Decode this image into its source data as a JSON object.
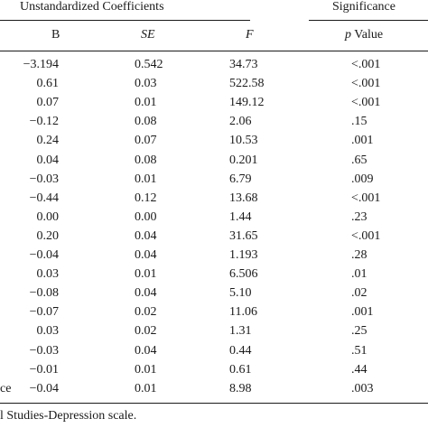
{
  "header": {
    "group_unstandardized": "Unstandardized Coefficients",
    "group_significance": "Significance",
    "col_b": "B",
    "col_se": "SE",
    "col_f": "F",
    "col_p_italic": "p",
    "col_p_rest": " Value"
  },
  "rows": [
    {
      "label": "",
      "b": "−3.194",
      "se": "0.542",
      "f": "34.73",
      "p": "<.001"
    },
    {
      "label": "",
      "b": "0.61",
      "se": "0.03",
      "f": "522.58",
      "p": "<.001"
    },
    {
      "label": "",
      "b": "0.07",
      "se": "0.01",
      "f": "149.12",
      "p": "<.001"
    },
    {
      "label": "",
      "b": "−0.12",
      "se": "0.08",
      "f": "2.06",
      "p": ".15"
    },
    {
      "label": "",
      "b": "0.24",
      "se": "0.07",
      "f": "10.53",
      "p": ".001"
    },
    {
      "label": "",
      "b": "0.04",
      "se": "0.08",
      "f": "0.201",
      "p": ".65"
    },
    {
      "label": "",
      "b": "−0.03",
      "se": "0.01",
      "f": "6.79",
      "p": ".009"
    },
    {
      "label": "",
      "b": "−0.44",
      "se": "0.12",
      "f": "13.68",
      "p": "<.001"
    },
    {
      "label": "",
      "b": "0.00",
      "se": "0.00",
      "f": "1.44",
      "p": ".23"
    },
    {
      "label": "",
      "b": "0.20",
      "se": "0.04",
      "f": "31.65",
      "p": "<.001"
    },
    {
      "label": "",
      "b": "−0.04",
      "se": "0.04",
      "f": "1.193",
      "p": ".28"
    },
    {
      "label": "",
      "b": "0.03",
      "se": "0.01",
      "f": "6.506",
      "p": ".01"
    },
    {
      "label": "",
      "b": "−0.08",
      "se": "0.04",
      "f": "5.10",
      "p": ".02"
    },
    {
      "label": "",
      "b": "−0.07",
      "se": "0.02",
      "f": "11.06",
      "p": ".001"
    },
    {
      "label": "",
      "b": "0.03",
      "se": "0.02",
      "f": "1.31",
      "p": ".25"
    },
    {
      "label": "",
      "b": "−0.03",
      "se": "0.04",
      "f": "0.44",
      "p": ".51"
    },
    {
      "label": "",
      "b": "−0.01",
      "se": "0.01",
      "f": "0.61",
      "p": ".44"
    },
    {
      "label": "ce",
      "b": "−0.04",
      "se": "0.01",
      "f": "8.98",
      "p": ".003"
    }
  ],
  "footnote": "l Studies-Depression scale."
}
